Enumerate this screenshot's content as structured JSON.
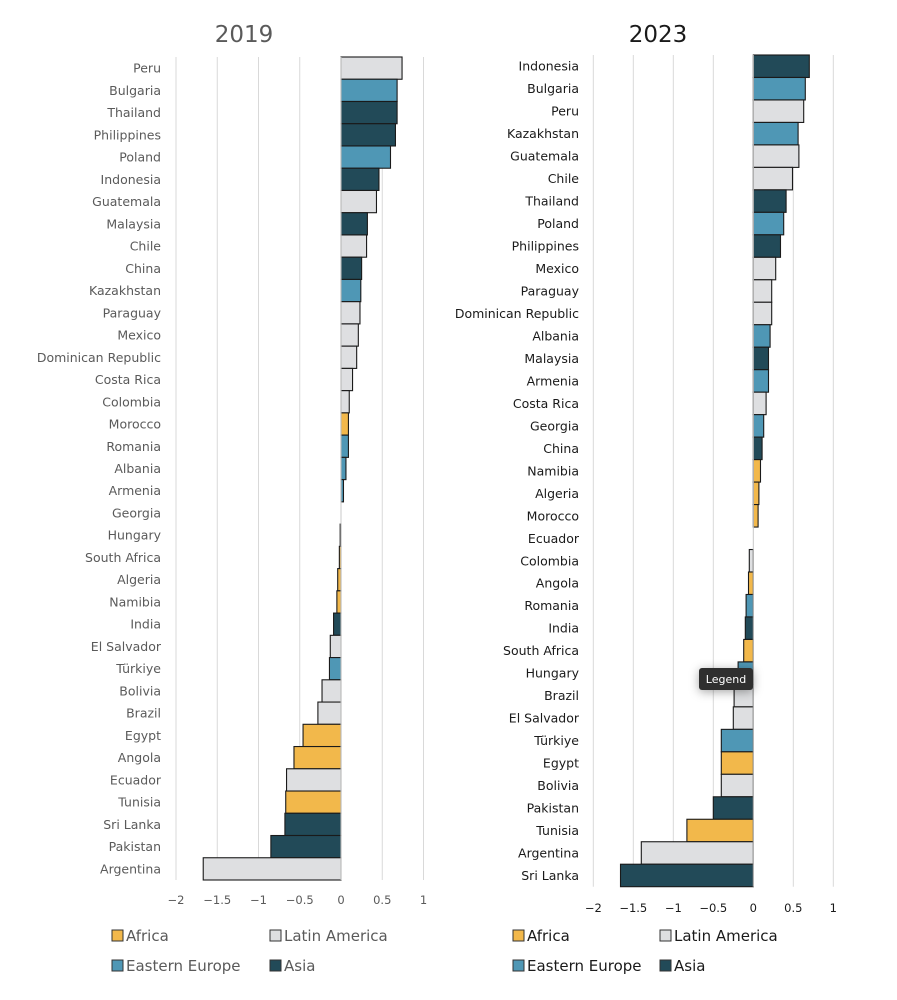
{
  "colors": {
    "Africa": "#f2b84b",
    "Latin America": "#dedfe1",
    "Eastern Europe": "#4f97b5",
    "Asia": "#224a58",
    "gridline": "#d9d9d9",
    "bar_outline": "#1a1a1a"
  },
  "tooltip": {
    "text": "Legend"
  },
  "chart_data": [
    {
      "type": "bar",
      "orientation": "horizontal",
      "title": "2019",
      "text_color": "#5a5a5a",
      "xlabel": "",
      "ylabel": "",
      "xlim": [
        -2,
        1
      ],
      "xticks": [
        -2,
        -1.5,
        -1,
        -0.5,
        0,
        0.5,
        1
      ],
      "xtick_labels": [
        "-2",
        "-1.5",
        "-1",
        "-0.5",
        "0",
        "0.5",
        "1"
      ],
      "grid": "vertical",
      "legend": {
        "placement": "bottom",
        "entries": [
          "Africa",
          "Latin America",
          "Eastern Europe",
          "Asia"
        ]
      },
      "categories": [
        "Peru",
        "Bulgaria",
        "Thailand",
        "Philippines",
        "Poland",
        "Indonesia",
        "Guatemala",
        "Malaysia",
        "Chile",
        "China",
        "Kazakhstan",
        "Paraguay",
        "Mexico",
        "Dominican Republic",
        "Costa Rica",
        "Colombia",
        "Morocco",
        "Romania",
        "Albania",
        "Armenia",
        "Georgia",
        "Hungary",
        "South Africa",
        "Algeria",
        "Namibia",
        "India",
        "El Salvador",
        "Türkiye",
        "Bolivia",
        "Brazil",
        "Egypt",
        "Angola",
        "Ecuador",
        "Tunisia",
        "Sri Lanka",
        "Pakistan",
        "Argentina"
      ],
      "values": [
        0.74,
        0.68,
        0.68,
        0.66,
        0.6,
        0.46,
        0.43,
        0.32,
        0.31,
        0.25,
        0.24,
        0.23,
        0.21,
        0.19,
        0.14,
        0.1,
        0.09,
        0.09,
        0.06,
        0.03,
        0.0,
        -0.01,
        -0.02,
        -0.04,
        -0.05,
        -0.09,
        -0.13,
        -0.14,
        -0.23,
        -0.28,
        -0.46,
        -0.57,
        -0.66,
        -0.67,
        -0.68,
        -0.85,
        -1.67
      ],
      "groups": [
        "Latin America",
        "Eastern Europe",
        "Asia",
        "Asia",
        "Eastern Europe",
        "Asia",
        "Latin America",
        "Asia",
        "Latin America",
        "Asia",
        "Eastern Europe",
        "Latin America",
        "Latin America",
        "Latin America",
        "Latin America",
        "Latin America",
        "Africa",
        "Eastern Europe",
        "Eastern Europe",
        "Eastern Europe",
        "Eastern Europe",
        "Eastern Europe",
        "Africa",
        "Africa",
        "Africa",
        "Asia",
        "Latin America",
        "Eastern Europe",
        "Latin America",
        "Latin America",
        "Africa",
        "Africa",
        "Latin America",
        "Africa",
        "Asia",
        "Asia",
        "Latin America"
      ]
    },
    {
      "type": "bar",
      "orientation": "horizontal",
      "title": "2023",
      "text_color": "#1a1a1a",
      "xlabel": "",
      "ylabel": "",
      "xlim": [
        -2,
        1
      ],
      "xticks": [
        -2,
        -1.5,
        -1,
        -0.5,
        0,
        0.5,
        1
      ],
      "xtick_labels": [
        "-2",
        "-1.5",
        "-1",
        "-0.5",
        "0",
        "0.5",
        "1"
      ],
      "grid": "vertical",
      "legend": {
        "placement": "bottom",
        "entries": [
          "Africa",
          "Latin America",
          "Eastern Europe",
          "Asia"
        ]
      },
      "categories": [
        "Indonesia",
        "Bulgaria",
        "Peru",
        "Kazakhstan",
        "Guatemala",
        "Chile",
        "Thailand",
        "Poland",
        "Philippines",
        "Mexico",
        "Paraguay",
        "Dominican Republic",
        "Albania",
        "Malaysia",
        "Armenia",
        "Costa Rica",
        "Georgia",
        "China",
        "Namibia",
        "Algeria",
        "Morocco",
        "Ecuador",
        "Colombia",
        "Angola",
        "Romania",
        "India",
        "South Africa",
        "Hungary",
        "Brazil",
        "El Salvador",
        "Türkiye",
        "Egypt",
        "Bolivia",
        "Pakistan",
        "Tunisia",
        "Argentina",
        "Sri Lanka"
      ],
      "values": [
        0.7,
        0.65,
        0.63,
        0.56,
        0.57,
        0.49,
        0.41,
        0.38,
        0.34,
        0.28,
        0.23,
        0.23,
        0.21,
        0.19,
        0.19,
        0.16,
        0.13,
        0.11,
        0.09,
        0.07,
        0.06,
        0.0,
        -0.05,
        -0.06,
        -0.09,
        -0.1,
        -0.12,
        -0.19,
        -0.24,
        -0.25,
        -0.4,
        -0.4,
        -0.4,
        -0.5,
        -0.83,
        -1.4,
        -1.66
      ],
      "groups": [
        "Asia",
        "Eastern Europe",
        "Latin America",
        "Eastern Europe",
        "Latin America",
        "Latin America",
        "Asia",
        "Eastern Europe",
        "Asia",
        "Latin America",
        "Latin America",
        "Latin America",
        "Eastern Europe",
        "Asia",
        "Eastern Europe",
        "Latin America",
        "Eastern Europe",
        "Asia",
        "Africa",
        "Africa",
        "Africa",
        "Latin America",
        "Latin America",
        "Africa",
        "Eastern Europe",
        "Asia",
        "Africa",
        "Eastern Europe",
        "Latin America",
        "Latin America",
        "Eastern Europe",
        "Africa",
        "Latin America",
        "Asia",
        "Africa",
        "Latin America",
        "Asia"
      ]
    }
  ]
}
